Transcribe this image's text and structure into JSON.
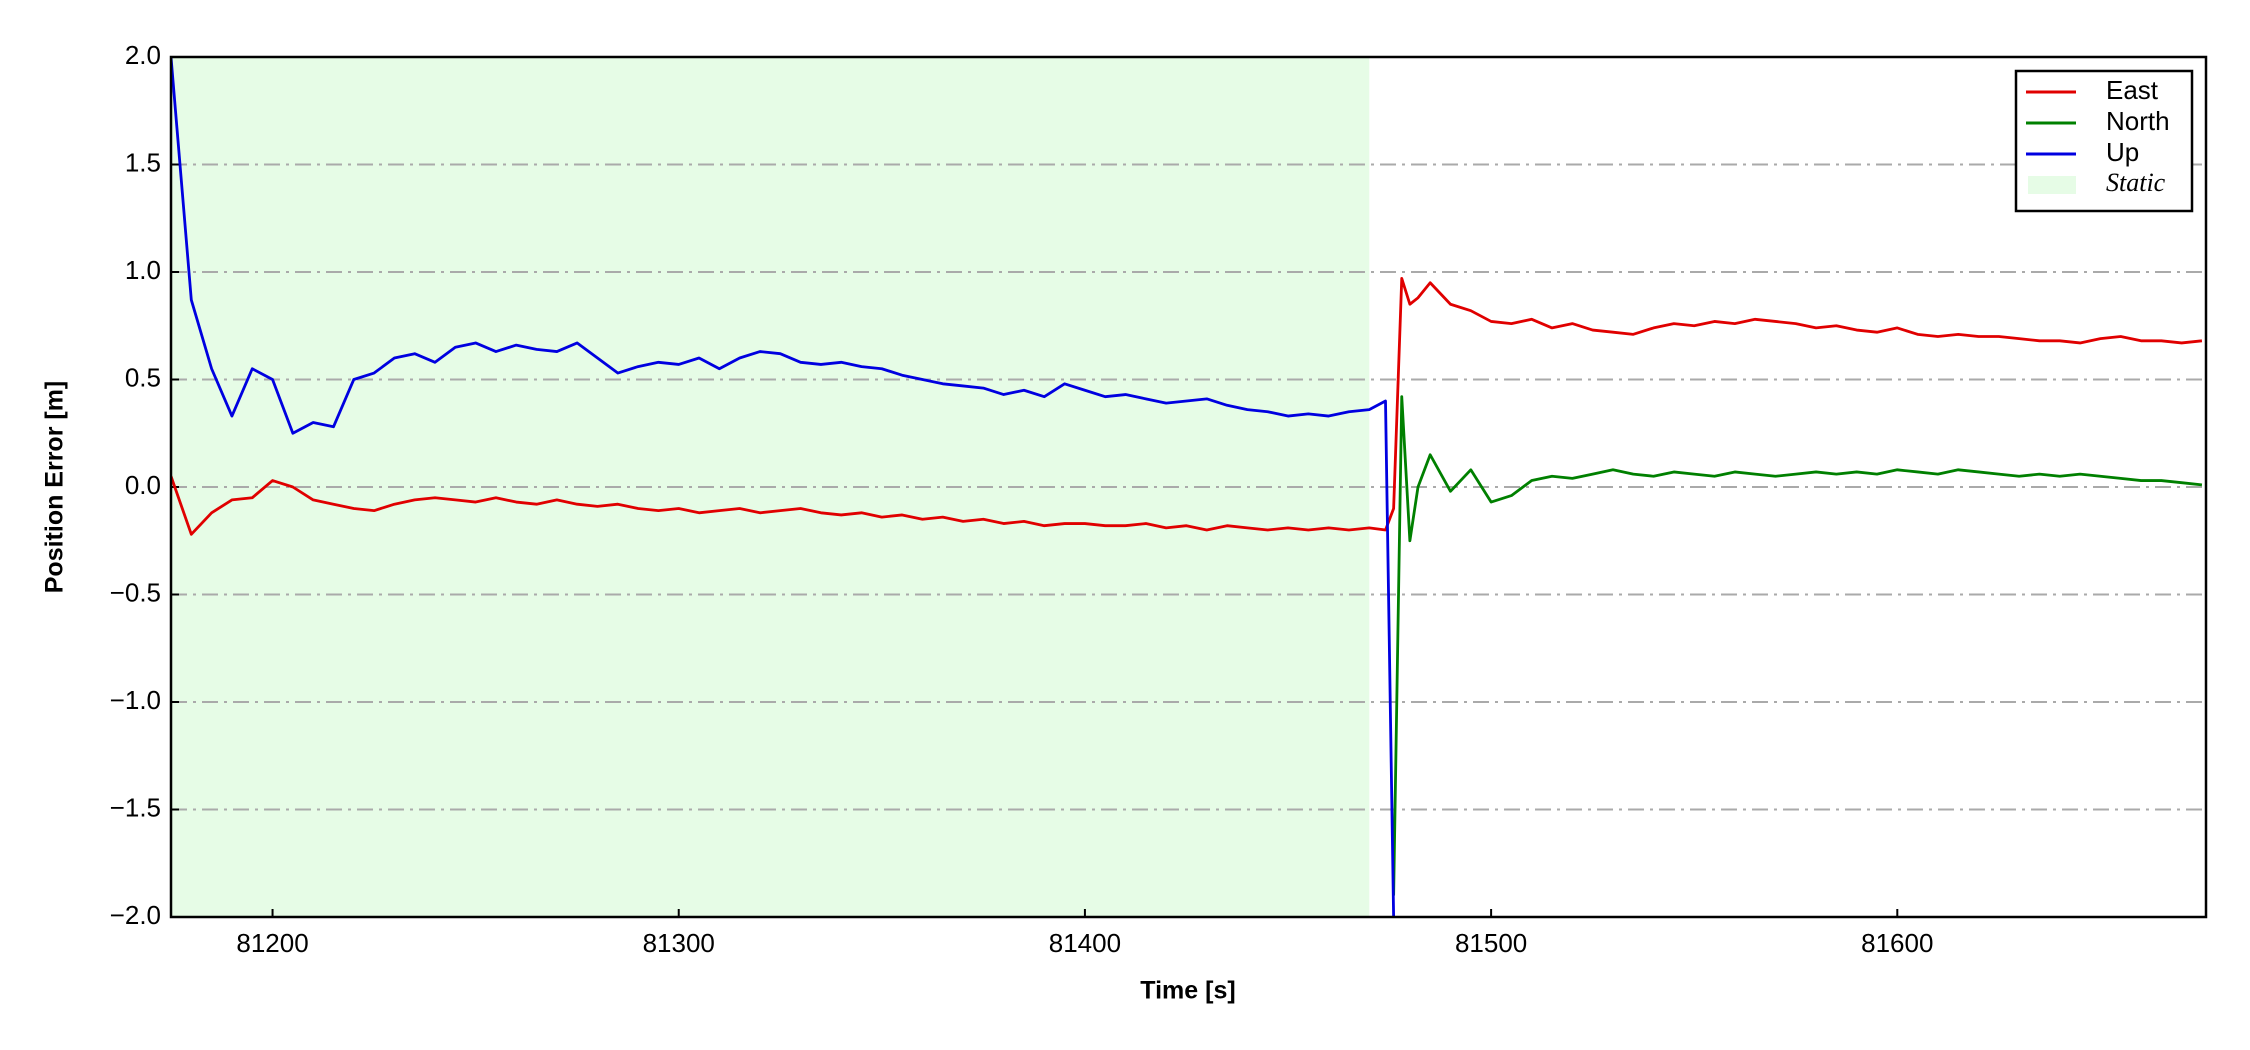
{
  "chart_data": {
    "type": "line",
    "xlabel": "Time [s]",
    "ylabel": "Position Error [m]",
    "x": [
      81175,
      81180,
      81185,
      81190,
      81195,
      81200,
      81205,
      81210,
      81215,
      81220,
      81225,
      81230,
      81235,
      81240,
      81245,
      81250,
      81255,
      81260,
      81265,
      81270,
      81275,
      81280,
      81285,
      81290,
      81295,
      81300,
      81305,
      81310,
      81315,
      81320,
      81325,
      81330,
      81335,
      81340,
      81345,
      81350,
      81355,
      81360,
      81365,
      81370,
      81375,
      81380,
      81385,
      81390,
      81395,
      81400,
      81405,
      81410,
      81415,
      81420,
      81425,
      81430,
      81435,
      81440,
      81445,
      81450,
      81455,
      81460,
      81465,
      81470,
      81474,
      81476,
      81478,
      81480,
      81482,
      81485,
      81490,
      81495,
      81500,
      81505,
      81510,
      81515,
      81520,
      81525,
      81530,
      81535,
      81540,
      81545,
      81550,
      81555,
      81560,
      81565,
      81570,
      81575,
      81580,
      81585,
      81590,
      81595,
      81600,
      81605,
      81610,
      81615,
      81620,
      81625,
      81630,
      81635,
      81640,
      81645,
      81650,
      81655,
      81660,
      81665,
      81670,
      81675
    ],
    "series": [
      {
        "name": "East",
        "color": "#e00000",
        "values": [
          0.05,
          -0.22,
          -0.12,
          -0.06,
          -0.05,
          0.03,
          0.0,
          -0.06,
          -0.08,
          -0.1,
          -0.11,
          -0.08,
          -0.06,
          -0.05,
          -0.06,
          -0.07,
          -0.05,
          -0.07,
          -0.08,
          -0.06,
          -0.08,
          -0.09,
          -0.08,
          -0.1,
          -0.11,
          -0.1,
          -0.12,
          -0.11,
          -0.1,
          -0.12,
          -0.11,
          -0.1,
          -0.12,
          -0.13,
          -0.12,
          -0.14,
          -0.13,
          -0.15,
          -0.14,
          -0.16,
          -0.15,
          -0.17,
          -0.16,
          -0.18,
          -0.17,
          -0.17,
          -0.18,
          -0.18,
          -0.17,
          -0.19,
          -0.18,
          -0.2,
          -0.18,
          -0.19,
          -0.2,
          -0.19,
          -0.2,
          -0.19,
          -0.2,
          -0.19,
          -0.2,
          -0.1,
          0.97,
          0.85,
          0.88,
          0.95,
          0.85,
          0.82,
          0.77,
          0.76,
          0.78,
          0.74,
          0.76,
          0.73,
          0.72,
          0.71,
          0.74,
          0.76,
          0.75,
          0.77,
          0.76,
          0.78,
          0.77,
          0.76,
          0.74,
          0.75,
          0.73,
          0.72,
          0.74,
          0.71,
          0.7,
          0.71,
          0.7,
          0.7,
          0.69,
          0.68,
          0.68,
          0.67,
          0.69,
          0.7,
          0.68,
          0.68,
          0.67,
          0.68
        ]
      },
      {
        "name": "North",
        "color": "#008000",
        "values": [
          null,
          null,
          null,
          null,
          null,
          null,
          null,
          null,
          null,
          null,
          null,
          null,
          null,
          null,
          null,
          null,
          null,
          null,
          null,
          null,
          null,
          null,
          null,
          null,
          null,
          null,
          null,
          null,
          null,
          null,
          null,
          null,
          null,
          null,
          null,
          null,
          null,
          null,
          null,
          null,
          null,
          null,
          null,
          null,
          null,
          null,
          null,
          null,
          null,
          null,
          null,
          null,
          null,
          null,
          null,
          null,
          null,
          null,
          null,
          null,
          null,
          -1.9,
          0.42,
          -0.25,
          0.0,
          0.15,
          -0.02,
          0.08,
          -0.07,
          -0.04,
          0.03,
          0.05,
          0.04,
          0.06,
          0.08,
          0.06,
          0.05,
          0.07,
          0.06,
          0.05,
          0.07,
          0.06,
          0.05,
          0.06,
          0.07,
          0.06,
          0.07,
          0.06,
          0.08,
          0.07,
          0.06,
          0.08,
          0.07,
          0.06,
          0.05,
          0.06,
          0.05,
          0.06,
          0.05,
          0.04,
          0.03,
          0.03,
          0.02,
          0.01
        ]
      },
      {
        "name": "Up",
        "color": "#0000e0",
        "values": [
          2.0,
          0.87,
          0.55,
          0.33,
          0.55,
          0.5,
          0.25,
          0.3,
          0.28,
          0.5,
          0.53,
          0.6,
          0.62,
          0.58,
          0.65,
          0.67,
          0.63,
          0.66,
          0.64,
          0.63,
          0.67,
          0.6,
          0.53,
          0.56,
          0.58,
          0.57,
          0.6,
          0.55,
          0.6,
          0.63,
          0.62,
          0.58,
          0.57,
          0.58,
          0.56,
          0.55,
          0.52,
          0.5,
          0.48,
          0.47,
          0.46,
          0.43,
          0.45,
          0.42,
          0.48,
          0.45,
          0.42,
          0.43,
          0.41,
          0.39,
          0.4,
          0.41,
          0.38,
          0.36,
          0.35,
          0.33,
          0.34,
          0.33,
          0.35,
          0.36,
          0.4,
          -2.0,
          null,
          null,
          null,
          null,
          null,
          null,
          null,
          null,
          null,
          null,
          null,
          null,
          null,
          null,
          null,
          null,
          null,
          null,
          null,
          null,
          null,
          null,
          null,
          null,
          null,
          null,
          null,
          null,
          null,
          null,
          null,
          null,
          null,
          null,
          null,
          null,
          null,
          null,
          null,
          null,
          null,
          null
        ]
      }
    ],
    "shaded_region": {
      "label": "Static",
      "xrange": [
        81175,
        81470
      ],
      "color": "#e6fce6"
    },
    "xlim": [
      81175,
      81676
    ],
    "ylim": [
      -2.0,
      2.0
    ],
    "xticks": [
      81200,
      81300,
      81400,
      81500,
      81600
    ],
    "yticks": [
      {
        "value": -2.0,
        "label": "−2.0"
      },
      {
        "value": -1.5,
        "label": "−1.5"
      },
      {
        "value": -1.0,
        "label": "−1.0"
      },
      {
        "value": -0.5,
        "label": "−0.5"
      },
      {
        "value": 0.0,
        "label": "0.0"
      },
      {
        "value": 0.5,
        "label": "0.5"
      },
      {
        "value": 1.0,
        "label": "1.0"
      },
      {
        "value": 1.5,
        "label": "1.5"
      },
      {
        "value": 2.0,
        "label": "2.0"
      }
    ],
    "grid": true,
    "legend": "upper right"
  }
}
